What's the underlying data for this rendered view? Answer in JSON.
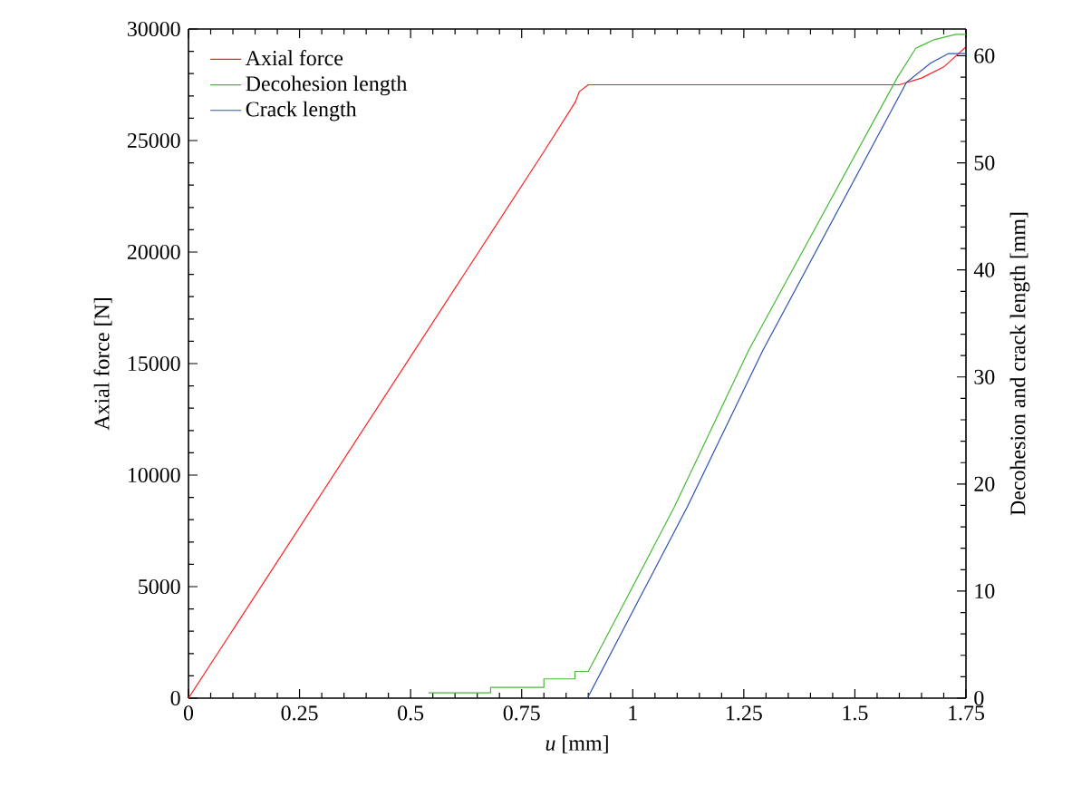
{
  "chart_data": {
    "type": "line",
    "xlabel": "*u* [mm]",
    "ylabel": "Axial force [N]",
    "y2label": "Decohesion and crack length [mm]",
    "xlim": [
      0,
      1.75
    ],
    "xticks": [
      0,
      0.25,
      0.5,
      0.75,
      1,
      1.25,
      1.5,
      1.75
    ],
    "ylim": [
      0,
      30000
    ],
    "yticks": [
      0,
      5000,
      10000,
      15000,
      20000,
      25000,
      30000
    ],
    "y2lim": [
      0,
      62.5
    ],
    "y2ticks": [
      0,
      10,
      20,
      30,
      40,
      50,
      60
    ],
    "legend": "top left",
    "grid": false,
    "marker": "none",
    "line_style": "solid",
    "series": [
      {
        "name": "Axial force",
        "color": "#ff2020",
        "x": [
          0,
          0.8,
          0.87,
          0.88,
          0.9,
          1.6,
          1.65,
          1.7,
          1.75
        ],
        "values": [
          0,
          24500,
          26700,
          27200,
          27500,
          27500,
          27800,
          28300,
          29200
        ]
      },
      {
        "name": "Decohesion length",
        "color": "#44bb33",
        "axis": "y2",
        "x": [
          0.54,
          0.68,
          0.68,
          0.8,
          0.8,
          0.87,
          0.87,
          0.9,
          1.093,
          1.261,
          1.596,
          1.637,
          1.678,
          1.727,
          1.75
        ],
        "values": [
          0.5,
          0.5,
          1.0,
          1.0,
          1.8,
          1.8,
          2.5,
          2.5,
          17.8,
          32.5,
          58,
          60.7,
          61.5,
          62,
          62
        ]
      },
      {
        "name": "Crack length",
        "color": "#3050b0",
        "axis": "y2",
        "x": [
          0.898,
          1.122,
          1.293,
          1.616,
          1.67,
          1.71,
          1.75
        ],
        "values": [
          0,
          17.8,
          32.5,
          57.5,
          59.3,
          60.2,
          60.2
        ]
      }
    ]
  }
}
